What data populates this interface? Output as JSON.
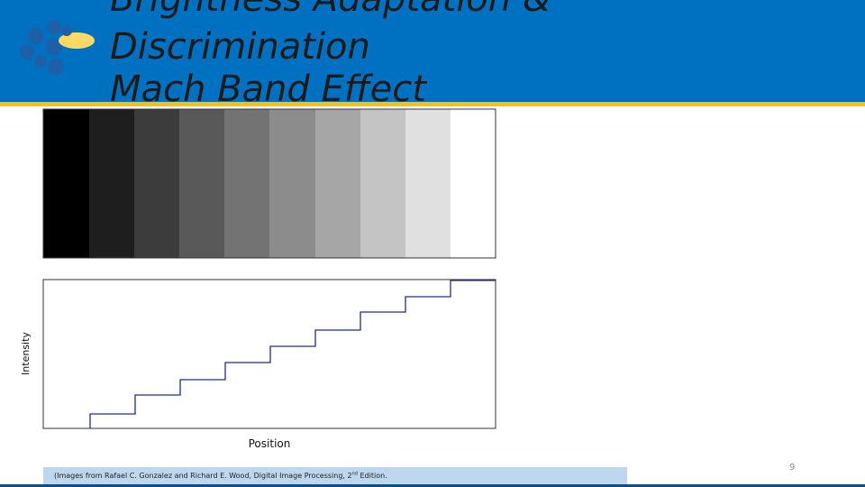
{
  "header": {
    "title_lines": [
      "Brightness Adaptation &",
      "Discrimination",
      "Mach Band Effect"
    ]
  },
  "figure": {
    "y_label": "Intensity",
    "x_label": "Position"
  },
  "citation": {
    "text_before": "(Images from Rafael C. Gonzalez and Richard E. Wood, Digital Image Processing, 2",
    "superscript": "nd",
    "text_after": " Edition."
  },
  "page_number": "9"
}
